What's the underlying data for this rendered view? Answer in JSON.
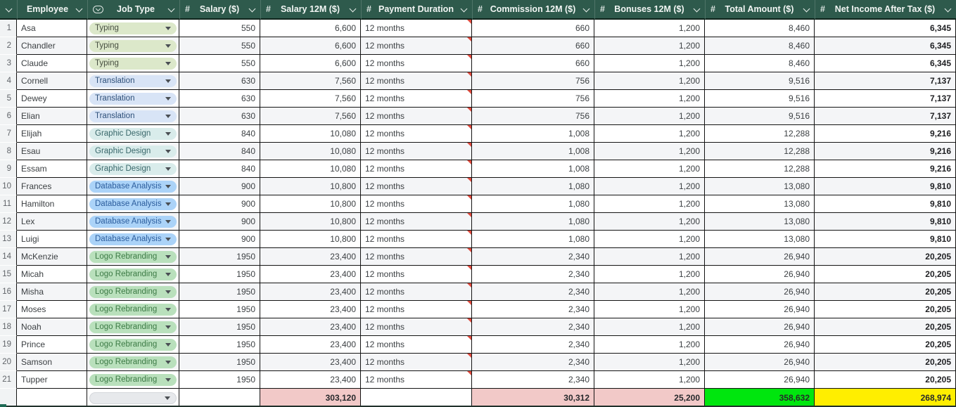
{
  "header": {
    "select_all": {
      "icon": "chevron-down"
    },
    "columns": [
      {
        "id": "employee",
        "label": "Employee",
        "icon": "none"
      },
      {
        "id": "job-type",
        "label": "Job Type",
        "icon": "single-select"
      },
      {
        "id": "salary",
        "label": "Salary ($)",
        "icon": "number"
      },
      {
        "id": "salary-12m",
        "label": "Salary 12M ($)",
        "icon": "number"
      },
      {
        "id": "payment-duration",
        "label": "Payment Duration",
        "icon": "number"
      },
      {
        "id": "commission-12m",
        "label": "Commission 12M ($)",
        "icon": "number"
      },
      {
        "id": "bonuses-12m",
        "label": "Bonuses 12M ($)",
        "icon": "number"
      },
      {
        "id": "total-amount",
        "label": "Total Amount ($)",
        "icon": "number"
      },
      {
        "id": "net-income",
        "label": "Net Income After Tax ($)",
        "icon": "number"
      }
    ]
  },
  "icons": {
    "number": "#"
  },
  "rows": [
    {
      "num": "1",
      "employee": "Asa",
      "job": "Typing",
      "salary": "550",
      "salary_12m": "6,600",
      "duration": "12 months",
      "commission": "660",
      "bonuses": "1,200",
      "total": "8,460",
      "net": "6,345"
    },
    {
      "num": "2",
      "employee": "Chandler",
      "job": "Typing",
      "salary": "550",
      "salary_12m": "6,600",
      "duration": "12 months",
      "commission": "660",
      "bonuses": "1,200",
      "total": "8,460",
      "net": "6,345"
    },
    {
      "num": "3",
      "employee": "Claude",
      "job": "Typing",
      "salary": "550",
      "salary_12m": "6,600",
      "duration": "12 months",
      "commission": "660",
      "bonuses": "1,200",
      "total": "8,460",
      "net": "6,345"
    },
    {
      "num": "4",
      "employee": "Cornell",
      "job": "Translation",
      "salary": "630",
      "salary_12m": "7,560",
      "duration": "12 months",
      "commission": "756",
      "bonuses": "1,200",
      "total": "9,516",
      "net": "7,137"
    },
    {
      "num": "5",
      "employee": "Dewey",
      "job": "Translation",
      "salary": "630",
      "salary_12m": "7,560",
      "duration": "12 months",
      "commission": "756",
      "bonuses": "1,200",
      "total": "9,516",
      "net": "7,137"
    },
    {
      "num": "6",
      "employee": "Elian",
      "job": "Translation",
      "salary": "630",
      "salary_12m": "7,560",
      "duration": "12 months",
      "commission": "756",
      "bonuses": "1,200",
      "total": "9,516",
      "net": "7,137"
    },
    {
      "num": "7",
      "employee": "Elijah",
      "job": "Graphic Design",
      "salary": "840",
      "salary_12m": "10,080",
      "duration": "12 months",
      "commission": "1,008",
      "bonuses": "1,200",
      "total": "12,288",
      "net": "9,216"
    },
    {
      "num": "8",
      "employee": "Esau",
      "job": "Graphic Design",
      "salary": "840",
      "salary_12m": "10,080",
      "duration": "12 months",
      "commission": "1,008",
      "bonuses": "1,200",
      "total": "12,288",
      "net": "9,216"
    },
    {
      "num": "9",
      "employee": "Essam",
      "job": "Graphic Design",
      "salary": "840",
      "salary_12m": "10,080",
      "duration": "12 months",
      "commission": "1,008",
      "bonuses": "1,200",
      "total": "12,288",
      "net": "9,216"
    },
    {
      "num": "10",
      "employee": "Frances",
      "job": "Database Analysis",
      "salary": "900",
      "salary_12m": "10,800",
      "duration": "12 months",
      "commission": "1,080",
      "bonuses": "1,200",
      "total": "13,080",
      "net": "9,810"
    },
    {
      "num": "11",
      "employee": "Hamilton",
      "job": "Database Analysis",
      "salary": "900",
      "salary_12m": "10,800",
      "duration": "12 months",
      "commission": "1,080",
      "bonuses": "1,200",
      "total": "13,080",
      "net": "9,810"
    },
    {
      "num": "12",
      "employee": "Lex",
      "job": "Database Analysis",
      "salary": "900",
      "salary_12m": "10,800",
      "duration": "12 months",
      "commission": "1,080",
      "bonuses": "1,200",
      "total": "13,080",
      "net": "9,810"
    },
    {
      "num": "13",
      "employee": "Luigi",
      "job": "Database Analysis",
      "salary": "900",
      "salary_12m": "10,800",
      "duration": "12 months",
      "commission": "1,080",
      "bonuses": "1,200",
      "total": "13,080",
      "net": "9,810"
    },
    {
      "num": "14",
      "employee": "McKenzie",
      "job": "Logo Rebranding",
      "salary": "1950",
      "salary_12m": "23,400",
      "duration": "12 months",
      "commission": "2,340",
      "bonuses": "1,200",
      "total": "26,940",
      "net": "20,205"
    },
    {
      "num": "15",
      "employee": "Micah",
      "job": "Logo Rebranding",
      "salary": "1950",
      "salary_12m": "23,400",
      "duration": "12 months",
      "commission": "2,340",
      "bonuses": "1,200",
      "total": "26,940",
      "net": "20,205"
    },
    {
      "num": "16",
      "employee": "Misha",
      "job": "Logo Rebranding",
      "salary": "1950",
      "salary_12m": "23,400",
      "duration": "12 months",
      "commission": "2,340",
      "bonuses": "1,200",
      "total": "26,940",
      "net": "20,205"
    },
    {
      "num": "17",
      "employee": "Moses",
      "job": "Logo Rebranding",
      "salary": "1950",
      "salary_12m": "23,400",
      "duration": "12 months",
      "commission": "2,340",
      "bonuses": "1,200",
      "total": "26,940",
      "net": "20,205"
    },
    {
      "num": "18",
      "employee": "Noah",
      "job": "Logo Rebranding",
      "salary": "1950",
      "salary_12m": "23,400",
      "duration": "12 months",
      "commission": "2,340",
      "bonuses": "1,200",
      "total": "26,940",
      "net": "20,205"
    },
    {
      "num": "19",
      "employee": "Prince",
      "job": "Logo Rebranding",
      "salary": "1950",
      "salary_12m": "23,400",
      "duration": "12 months",
      "commission": "2,340",
      "bonuses": "1,200",
      "total": "26,940",
      "net": "20,205"
    },
    {
      "num": "20",
      "employee": "Samson",
      "job": "Logo Rebranding",
      "salary": "1950",
      "salary_12m": "23,400",
      "duration": "12 months",
      "commission": "2,340",
      "bonuses": "1,200",
      "total": "26,940",
      "net": "20,205"
    },
    {
      "num": "21",
      "employee": "Tupper",
      "job": "Logo Rebranding",
      "salary": "1950",
      "salary_12m": "23,400",
      "duration": "12 months",
      "commission": "2,340",
      "bonuses": "1,200",
      "total": "26,940",
      "net": "20,205"
    }
  ],
  "summary": {
    "salary_12m_total": "303,120",
    "commission_total": "30,312",
    "bonuses_total": "25,200",
    "total_amount": "358,632",
    "net_income_total": "268,974"
  },
  "colors": {
    "header_bg": "#2e5a4c",
    "grid_line": "#141414",
    "row_alt": "#f4f5f7",
    "summary_pink": "#f2c9c8",
    "summary_green": "#00e60e",
    "summary_yellow": "#ffee00",
    "comment_flag_red": "#e0493c",
    "pills": {
      "Typing": {
        "bg": "#dce8ca",
        "fg": "#474f41"
      },
      "Translation": {
        "bg": "#d8e4f6",
        "fg": "#2d4f79"
      },
      "Graphic Design": {
        "bg": "#d9eceb",
        "fg": "#38676a"
      },
      "Database Analysis": {
        "bg": "#abd3f8",
        "fg": "#2c5d9d"
      },
      "Logo Rebranding": {
        "bg": "#b9e0bc",
        "fg": "#3c7a45"
      }
    }
  }
}
